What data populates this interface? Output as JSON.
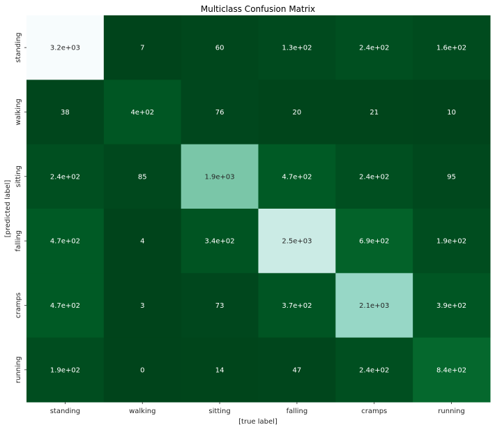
{
  "chart_data": {
    "type": "heatmap",
    "title": "Multiclass Confusion Matrix",
    "xlabel": "[true label]",
    "ylabel": "[predicted label]",
    "x_categories": [
      "standing",
      "walking",
      "sitting",
      "falling",
      "cramps",
      "running"
    ],
    "y_categories": [
      "standing",
      "walking",
      "sitting",
      "falling",
      "cramps",
      "running"
    ],
    "values": [
      [
        3200,
        7,
        60,
        130,
        240,
        160
      ],
      [
        38,
        400,
        76,
        20,
        21,
        10
      ],
      [
        240,
        85,
        1900,
        470,
        240,
        95
      ],
      [
        470,
        4,
        340,
        2500,
        690,
        190
      ],
      [
        470,
        3,
        73,
        370,
        2100,
        390
      ],
      [
        190,
        0,
        14,
        47,
        240,
        840
      ]
    ],
    "labels": [
      [
        "3.2e+03",
        "7",
        "60",
        "1.3e+02",
        "2.4e+02",
        "1.6e+02"
      ],
      [
        "38",
        "4e+02",
        "76",
        "20",
        "21",
        "10"
      ],
      [
        "2.4e+02",
        "85",
        "1.9e+03",
        "4.7e+02",
        "2.4e+02",
        "95"
      ],
      [
        "4.7e+02",
        "4",
        "3.4e+02",
        "2.5e+03",
        "6.9e+02",
        "1.9e+02"
      ],
      [
        "4.7e+02",
        "3",
        "73",
        "3.7e+02",
        "2.1e+03",
        "3.9e+02"
      ],
      [
        "1.9e+02",
        "0",
        "14",
        "47",
        "2.4e+02",
        "8.4e+02"
      ]
    ],
    "colormap": "Greens_r",
    "colorbar": false,
    "annotations": true,
    "colors": {
      "min": "#00441b",
      "mid": "#238b45",
      "max": "#f7fcf5",
      "label_light": "#ffffff",
      "label_dark": "#262626"
    }
  }
}
